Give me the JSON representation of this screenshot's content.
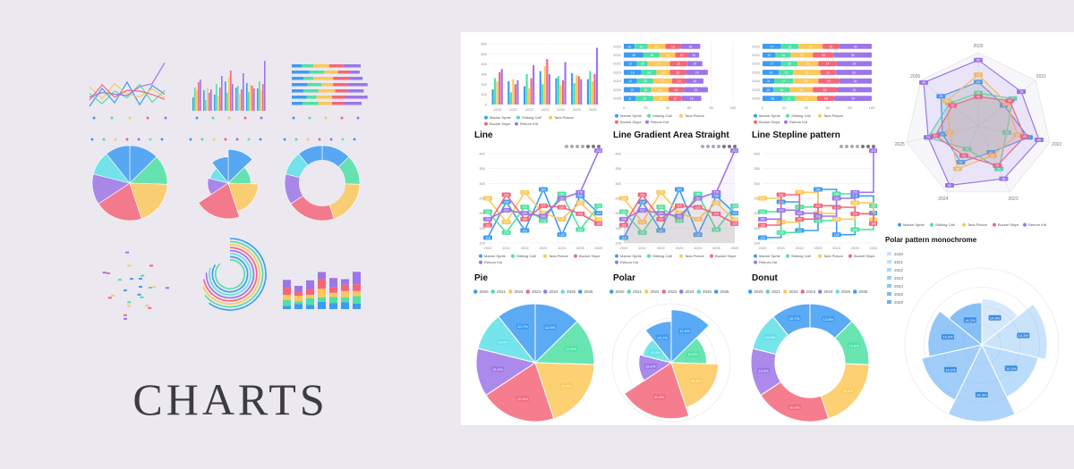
{
  "hero_title": "CHARTS",
  "series_names": [
    "Marine Sprite",
    "Striking Calf",
    "Tank Picture",
    "Bucket Slope",
    "Reborn Kid"
  ],
  "year_labels": [
    "2020",
    "2021",
    "2022",
    "2023",
    "2024",
    "2025",
    "2026"
  ],
  "colors": [
    "#3d9bf2",
    "#4fe0a4",
    "#fcc85a",
    "#f4667a",
    "#9c76e8",
    "#5ee0e8"
  ],
  "chart_data": [
    {
      "title": "",
      "type": "bar",
      "categories": [
        "2020",
        "2021",
        "2022",
        "2023",
        "2024",
        "2025",
        "2026"
      ],
      "series": [
        {
          "name": "Marine Sprite",
          "values": [
            150,
            230,
            180,
            330,
            260,
            310,
            250
          ]
        },
        {
          "name": "Striking Calf",
          "values": [
            260,
            120,
            300,
            200,
            280,
            210,
            330
          ]
        },
        {
          "name": "Tank Picture",
          "values": [
            230,
            250,
            160,
            380,
            190,
            290,
            230
          ]
        },
        {
          "name": "Bucket Slope",
          "values": [
            320,
            200,
            260,
            450,
            240,
            280,
            300
          ]
        },
        {
          "name": "Reborn Kid",
          "values": [
            350,
            240,
            390,
            300,
            420,
            250,
            560
          ]
        }
      ],
      "ylim": [
        0,
        600
      ]
    },
    {
      "title": "",
      "type": "bar",
      "orientation": "horizontal",
      "stacked": true,
      "categories": [
        "2020",
        "2021",
        "2022",
        "2023",
        "2024",
        "2025",
        "2026"
      ],
      "series": [
        {
          "name": "Marine Sprite",
          "values": [
            10,
            18,
            12,
            16,
            12,
            15,
            11
          ]
        },
        {
          "name": "Striking Calf",
          "values": [
            12,
            15,
            10,
            14,
            15,
            10,
            16
          ]
        },
        {
          "name": "Tank Picture",
          "values": [
            16,
            14,
            20,
            12,
            17,
            16,
            14
          ]
        },
        {
          "name": "Bucket Slope",
          "values": [
            14,
            12,
            16,
            15,
            13,
            14,
            12
          ]
        },
        {
          "name": "Reborn Kid",
          "values": [
            18,
            10,
            14,
            20,
            16,
            22,
            18
          ]
        }
      ],
      "xlim": [
        0,
        100
      ]
    },
    {
      "title": "",
      "type": "bar",
      "orientation": "horizontal",
      "stacked": true,
      "normalized": true,
      "categories": [
        "2020",
        "2021",
        "2022",
        "2023",
        "2024",
        "2025",
        "2026"
      ],
      "series": [
        {
          "name": "Marine Sprite",
          "values": [
            17,
            12,
            17,
            15,
            11,
            10,
            18
          ]
        },
        {
          "name": "Striking Calf",
          "values": [
            16,
            14,
            15,
            13,
            17,
            15,
            12
          ]
        },
        {
          "name": "Tank Picture",
          "values": [
            22,
            20,
            19,
            25,
            23,
            21,
            20
          ]
        },
        {
          "name": "Bucket Slope",
          "values": [
            15,
            19,
            17,
            14,
            19,
            22,
            16
          ]
        },
        {
          "name": "Reborn Kid",
          "values": [
            30,
            35,
            32,
            33,
            30,
            32,
            34
          ]
        }
      ],
      "xlim": [
        0,
        100
      ]
    },
    {
      "title": "Line",
      "type": "line",
      "categories": [
        "2020",
        "2021",
        "2022",
        "2023",
        "2024",
        "2025",
        "2026"
      ],
      "series": [
        {
          "name": "Marine Sprite",
          "values": [
            118,
            238,
            142,
            280,
            128,
            258,
            200
          ]
        },
        {
          "name": "Striking Calf",
          "values": [
            205,
            135,
            221,
            175,
            265,
            145,
            225
          ]
        },
        {
          "name": "Tank Picture",
          "values": [
            250,
            170,
            270,
            200,
            180,
            235,
            178
          ]
        },
        {
          "name": "Bucket Slope",
          "values": [
            160,
            262,
            180,
            225,
            220,
            198,
            165
          ]
        },
        {
          "name": "Reborn Kid",
          "values": [
            180,
            210,
            200,
            190,
            250,
            270,
            410
          ]
        }
      ],
      "ylim": [
        100,
        400
      ]
    },
    {
      "title": "Line Gradient Area Straight",
      "type": "area",
      "categories": [
        "2020",
        "2021",
        "2022",
        "2023",
        "2024",
        "2025",
        "2026"
      ],
      "series": [
        {
          "name": "Marine Sprite",
          "values": [
            118,
            238,
            142,
            280,
            128,
            258,
            200
          ]
        },
        {
          "name": "Striking Calf",
          "values": [
            205,
            135,
            221,
            175,
            265,
            145,
            225
          ]
        },
        {
          "name": "Tank Picture",
          "values": [
            250,
            170,
            270,
            200,
            180,
            235,
            178
          ]
        },
        {
          "name": "Bucket Slope",
          "values": [
            160,
            262,
            180,
            225,
            220,
            198,
            165
          ]
        },
        {
          "name": "Reborn Kid",
          "values": [
            180,
            210,
            200,
            190,
            250,
            270,
            410
          ]
        }
      ],
      "ylim": [
        100,
        400
      ]
    },
    {
      "title": "Line Stepline pattern",
      "type": "line",
      "step": true,
      "categories": [
        "2020",
        "2021",
        "2022",
        "2023",
        "2024",
        "2025",
        "2026"
      ],
      "series": [
        {
          "name": "Marine Sprite",
          "values": [
            118,
            238,
            142,
            280,
            128,
            258,
            200
          ]
        },
        {
          "name": "Striking Calf",
          "values": [
            205,
            135,
            221,
            175,
            265,
            145,
            225
          ]
        },
        {
          "name": "Tank Picture",
          "values": [
            250,
            170,
            270,
            200,
            180,
            235,
            178
          ]
        },
        {
          "name": "Bucket Slope",
          "values": [
            160,
            262,
            180,
            225,
            220,
            198,
            165
          ]
        },
        {
          "name": "Reborn Kid",
          "values": [
            180,
            210,
            200,
            190,
            250,
            270,
            410
          ]
        }
      ],
      "ylim": [
        100,
        400
      ]
    },
    {
      "title": "",
      "type": "radar",
      "axes": [
        "2020",
        "2021",
        "2022",
        "2023",
        "2024",
        "2025",
        "2026"
      ],
      "series": [
        {
          "name": "Marine Sprite",
          "values": [
            60,
            45,
            70,
            40,
            55,
            50,
            65
          ]
        },
        {
          "name": "Striking Calf",
          "values": [
            45,
            60,
            40,
            65,
            35,
            70,
            50
          ]
        },
        {
          "name": "Tank Picture",
          "values": [
            70,
            50,
            55,
            45,
            65,
            40,
            55
          ]
        },
        {
          "name": "Bucket Slope",
          "values": [
            40,
            55,
            65,
            60,
            45,
            60,
            45
          ]
        },
        {
          "name": "Reborn Kid",
          "values": [
            90,
            75,
            85,
            80,
            90,
            70,
            95
          ]
        }
      ],
      "rmax": 100
    },
    {
      "title": "Pie",
      "type": "pie",
      "categories": [
        "2020",
        "2021",
        "2022",
        "2023",
        "2024",
        "2025",
        "2026"
      ],
      "values": [
        12.6,
        12.9,
        19.4,
        20.8,
        13.2,
        10.4,
        10.7
      ]
    },
    {
      "title": "Polar",
      "type": "pie",
      "variant": "polar",
      "categories": [
        "2020",
        "2021",
        "2022",
        "2023",
        "2024",
        "2025",
        "2026"
      ],
      "values": [
        12.6,
        12.9,
        19.4,
        20.8,
        13.2,
        10.4,
        10.7
      ],
      "radii": [
        0.9,
        0.6,
        0.8,
        0.95,
        0.55,
        0.5,
        0.7
      ]
    },
    {
      "title": "Donut",
      "type": "pie",
      "variant": "donut",
      "categories": [
        "2020",
        "2021",
        "2022",
        "2023",
        "2024",
        "2025",
        "2026"
      ],
      "values": [
        12.6,
        12.9,
        19.4,
        20.8,
        13.2,
        10.4,
        10.7
      ]
    },
    {
      "title": "Polar pattern monochrome",
      "type": "pie",
      "variant": "polar",
      "categories": [
        "2020",
        "2021",
        "2022",
        "2023",
        "2024",
        "2025",
        "2026"
      ],
      "values": [
        14.3,
        14.3,
        14.3,
        14.3,
        14.3,
        14.3,
        14.2
      ],
      "radii": [
        0.6,
        0.85,
        0.75,
        1.0,
        0.8,
        0.7,
        0.55
      ]
    }
  ]
}
